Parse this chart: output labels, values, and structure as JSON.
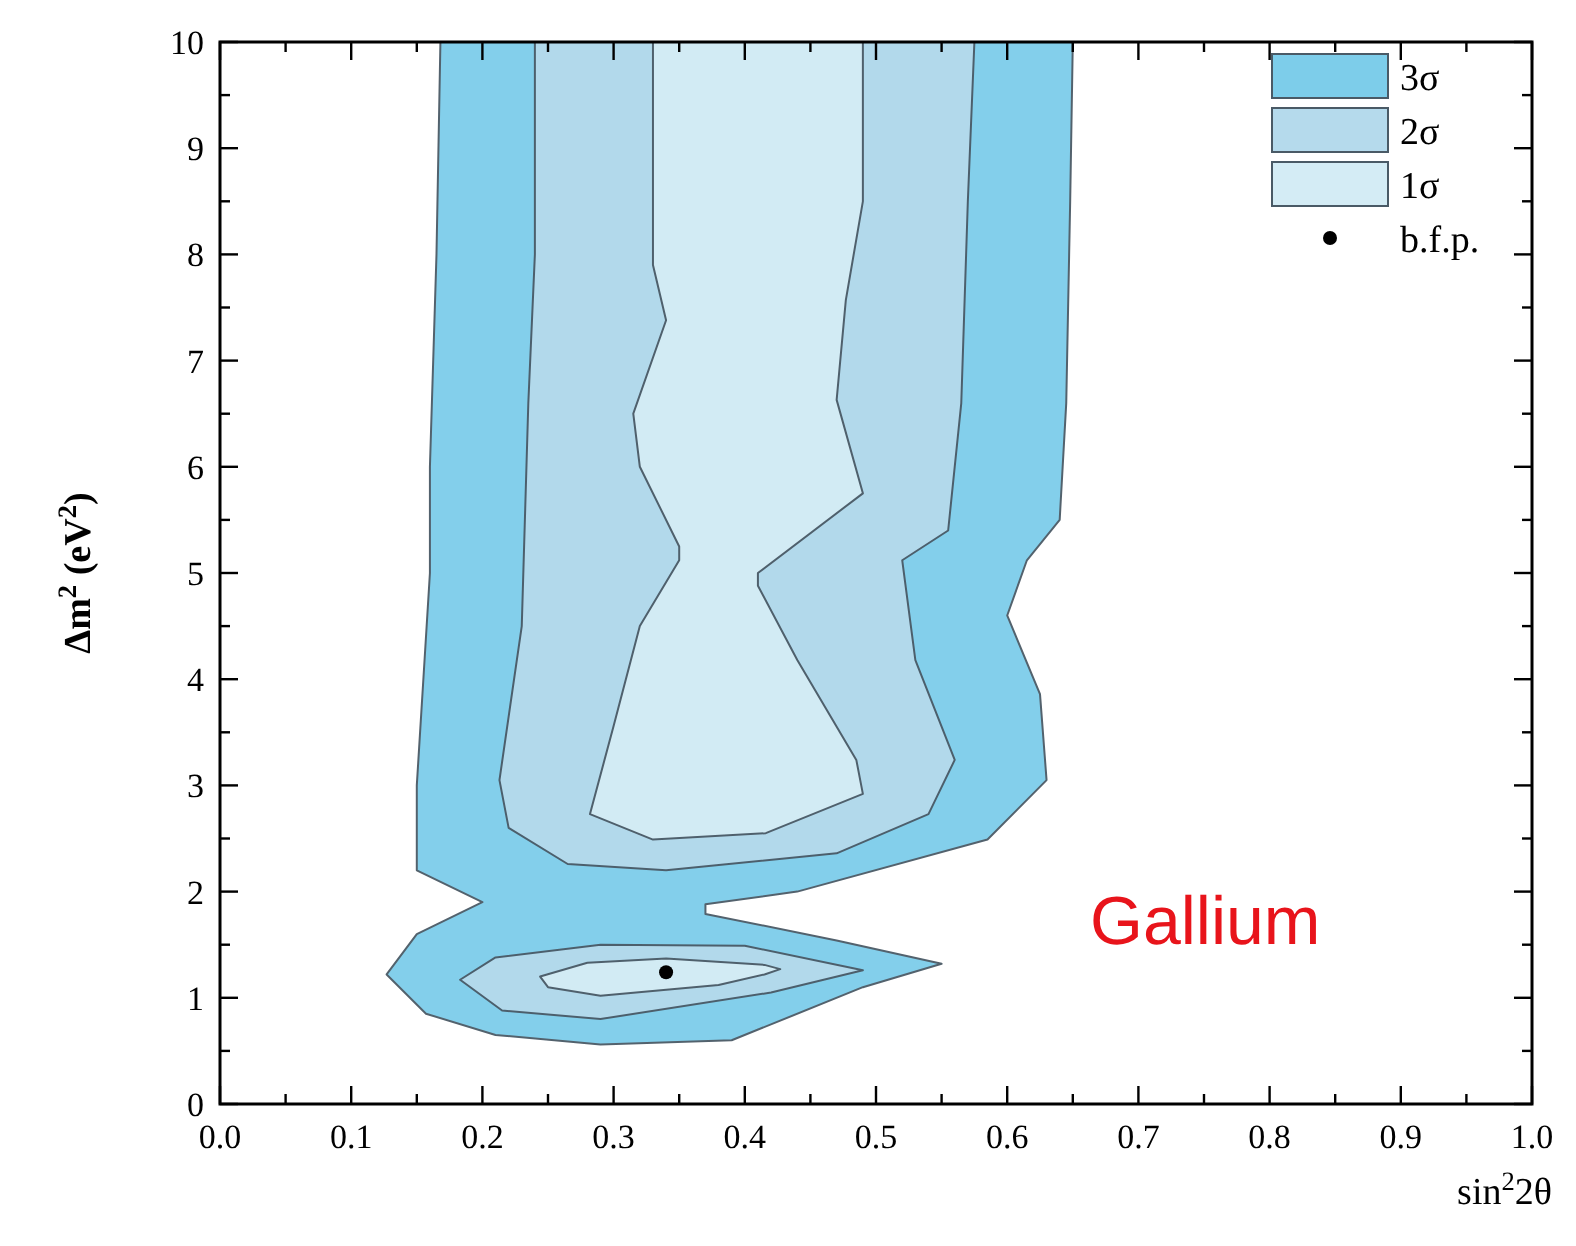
{
  "chart_data": {
    "type": "area",
    "xlabel": "sin$^{2}$2θ",
    "ylabel": "Δm$^{2}$ (eV$^{2}$)",
    "annotations": [
      "Gallium"
    ],
    "xlim": [
      0,
      1
    ],
    "ylim": [
      0,
      10
    ],
    "xticks": [
      {
        "value": 0,
        "label": "0.0"
      },
      {
        "value": 0.05,
        "label": null
      },
      {
        "value": 0.1,
        "label": "0.1"
      },
      {
        "value": 0.15,
        "label": null
      },
      {
        "value": 0.2,
        "label": "0.2"
      },
      {
        "value": 0.25,
        "label": null
      },
      {
        "value": 0.3,
        "label": "0.3"
      },
      {
        "value": 0.35,
        "label": null
      },
      {
        "value": 0.4,
        "label": "0.4"
      },
      {
        "value": 0.45,
        "label": null
      },
      {
        "value": 0.5,
        "label": "0.5"
      },
      {
        "value": 0.55,
        "label": null
      },
      {
        "value": 0.6,
        "label": "0.6"
      },
      {
        "value": 0.65,
        "label": null
      },
      {
        "value": 0.7,
        "label": "0.7"
      },
      {
        "value": 0.75,
        "label": null
      },
      {
        "value": 0.8,
        "label": "0.8"
      },
      {
        "value": 0.85,
        "label": null
      },
      {
        "value": 0.9,
        "label": "0.9"
      },
      {
        "value": 0.95,
        "label": null
      },
      {
        "value": 1,
        "label": "1.0"
      }
    ],
    "yticks": [
      0,
      {
        "value": 0.5,
        "label": null
      },
      1,
      {
        "value": 1.5,
        "label": null
      },
      2,
      {
        "value": 2.5,
        "label": null
      },
      3,
      {
        "value": 3.5,
        "label": null
      },
      4,
      {
        "value": 4.5,
        "label": null
      },
      5,
      {
        "value": 5.5,
        "label": null
      },
      6,
      {
        "value": 6.5,
        "label": null
      },
      7,
      {
        "value": 7.5,
        "label": null
      },
      8,
      {
        "value": 8.5,
        "label": null
      },
      9,
      {
        "value": 9.5,
        "label": null
      },
      10
    ],
    "grid": false,
    "legend": "top right",
    "series": [
      {
        "name": "3σ",
        "color": "#7dcdea",
        "x": [
          0.168,
          0.165,
          0.16,
          0.16,
          0.155,
          0.15,
          0.15,
          0.2,
          0.15,
          0.127,
          0.157,
          0.21,
          0.29,
          0.39,
          0.49,
          0.55,
          0.47,
          0.37,
          0.37,
          0.44,
          0.585,
          0.63,
          0.625,
          0.6,
          0.615,
          0.64,
          0.645,
          0.648,
          0.65
        ],
        "values": [
          10,
          8,
          6,
          5,
          4,
          3,
          2.2,
          1.9,
          1.6,
          1.22,
          0.85,
          0.65,
          0.56,
          0.6,
          1.1,
          1.32,
          1.54,
          1.79,
          1.88,
          2.0,
          2.49,
          3.05,
          3.86,
          4.6,
          5.12,
          5.5,
          6.6,
          8.5,
          10
        ]
      },
      {
        "name": "2σ",
        "color": "#b5daec",
        "x": [
          0.24,
          0.24,
          0.235,
          0.23,
          0.213,
          0.22,
          0.265,
          0.34,
          0.47,
          0.54,
          0.56,
          0.53,
          0.52,
          0.555,
          0.565,
          0.57,
          0.575,
          null,
          0.183,
          0.21,
          0.29,
          0.4,
          0.49,
          0.42,
          0.29,
          0.215
        ],
        "values": [
          10,
          8,
          6.6,
          4.5,
          3.05,
          2.6,
          2.26,
          2.2,
          2.36,
          2.73,
          3.24,
          4.18,
          5.12,
          5.4,
          6.6,
          8.5,
          10,
          null,
          1.17,
          1.38,
          1.5,
          1.49,
          1.26,
          1.05,
          0.8,
          0.88
        ]
      },
      {
        "name": "1σ",
        "color": "#d4ecf5",
        "x": [
          0.33,
          0.33,
          0.34,
          0.315,
          0.32,
          0.35,
          0.35,
          0.32,
          0.3,
          0.282,
          0.33,
          0.416,
          0.49,
          0.485,
          0.44,
          0.41,
          0.41,
          0.49,
          0.47,
          0.477,
          0.49,
          0.49,
          null,
          0.244,
          0.28,
          0.34,
          0.415,
          0.427,
          0.415,
          0.38,
          0.29,
          0.25
        ],
        "values": [
          10,
          7.9,
          7.38,
          6.5,
          6.0,
          5.25,
          5.12,
          4.5,
          3.56,
          2.73,
          2.49,
          2.55,
          2.92,
          3.24,
          4.18,
          4.88,
          5.0,
          5.75,
          6.63,
          7.57,
          8.5,
          10,
          null,
          1.2,
          1.33,
          1.37,
          1.31,
          1.27,
          1.22,
          1.12,
          1.02,
          1.1
        ]
      },
      {
        "name": "b.f.p.",
        "type": "scatter",
        "color": "#000000",
        "marker": "circle",
        "x": [
          0.34
        ],
        "values": [
          1.24
        ]
      }
    ]
  }
}
